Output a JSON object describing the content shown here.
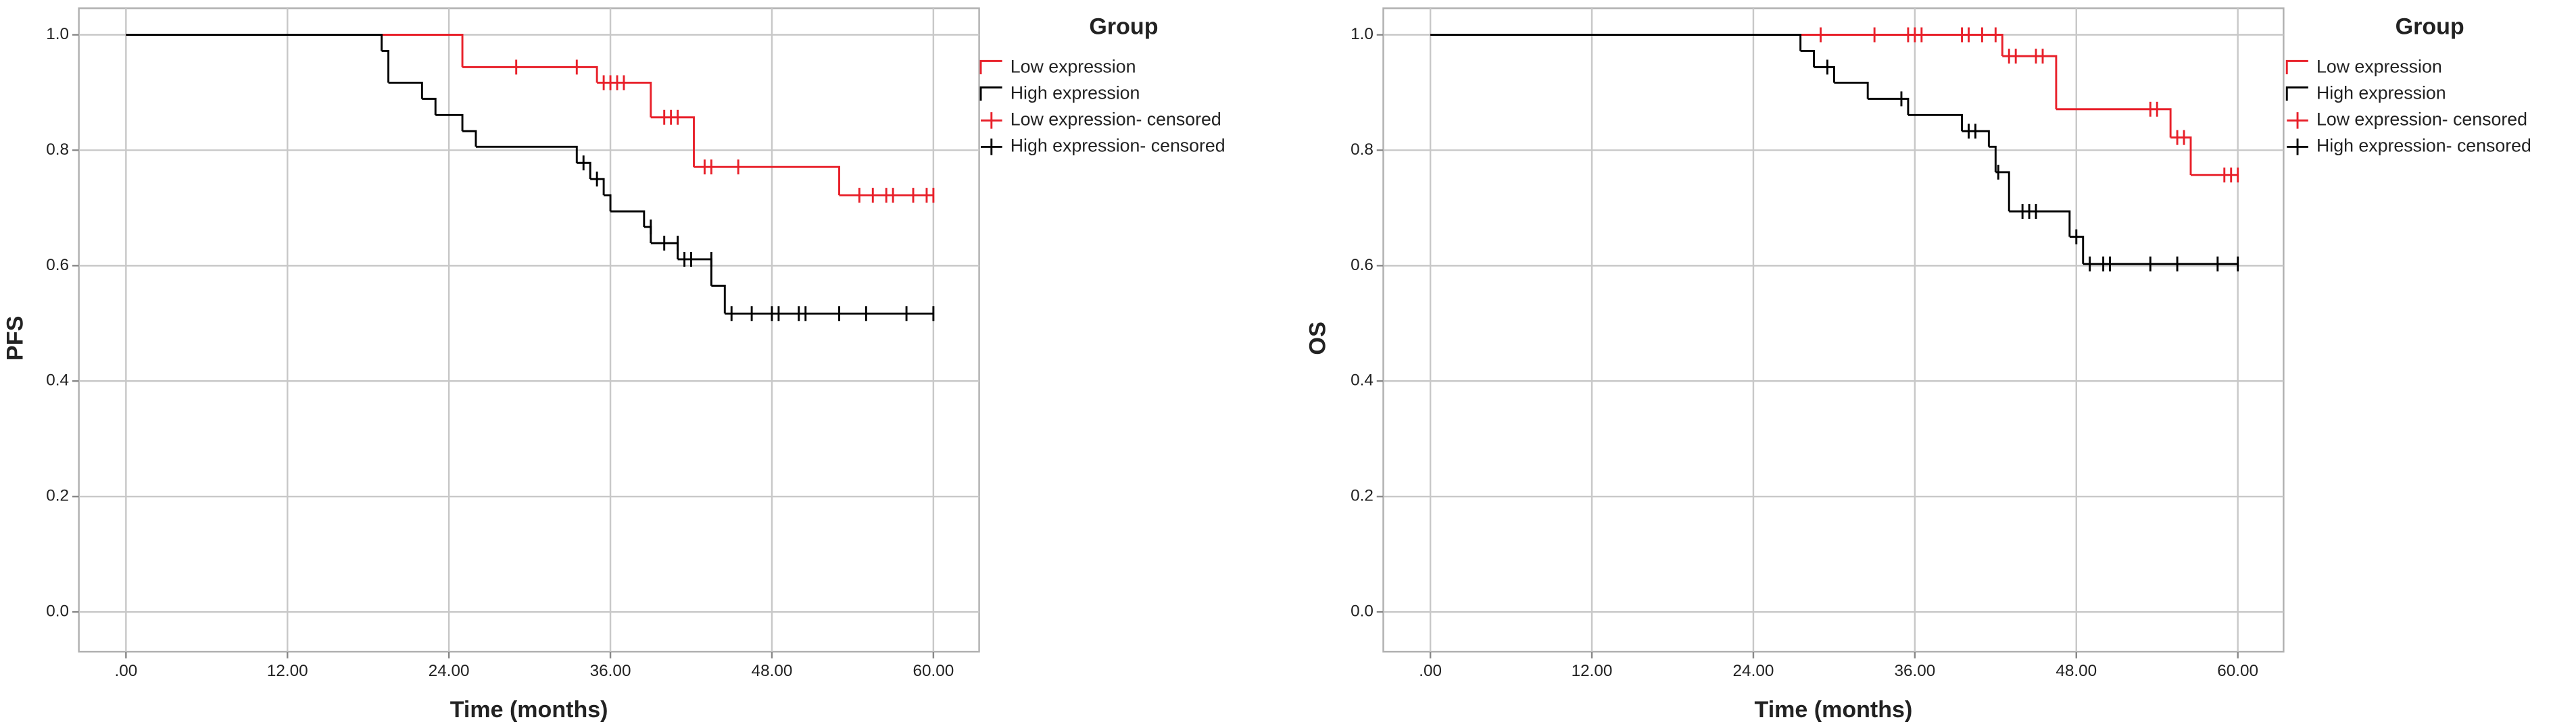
{
  "chart_data": [
    {
      "type": "step",
      "title_y": "PFS",
      "title_x": "Time (months)",
      "legend_title": "Group",
      "legend": "right",
      "grid": true,
      "xlim": [
        -3.5,
        63.4
      ],
      "ylim": [
        -0.069,
        1.046
      ],
      "xticks": [
        {
          "value": 0,
          "label": ".00"
        },
        {
          "value": 12,
          "label": "12.00"
        },
        {
          "value": 24,
          "label": "24.00"
        },
        {
          "value": 36,
          "label": "36.00"
        },
        {
          "value": 48,
          "label": "48.00"
        },
        {
          "value": 60,
          "label": "60.00"
        }
      ],
      "yticks": [
        {
          "value": 0,
          "label": "0.0"
        },
        0.2,
        0.4,
        0.6,
        0.8,
        {
          "value": 1,
          "label": "1.0"
        }
      ],
      "series": [
        {
          "name": "Low expression",
          "color": "#e8202a",
          "style": "step",
          "x": [
            0,
            25,
            35,
            39,
            42.2,
            53
          ],
          "values": [
            1,
            0.944,
            0.917,
            0.857,
            0.771,
            0.722
          ]
        },
        {
          "name": "High expression",
          "color": "#000000",
          "style": "step",
          "x": [
            0,
            19,
            19.5,
            22,
            23,
            25,
            26,
            33.5,
            34.5,
            35.5,
            36,
            38.5,
            39,
            41,
            43.5,
            44.5
          ],
          "values": [
            1,
            0.972,
            0.917,
            0.889,
            0.861,
            0.833,
            0.806,
            0.778,
            0.75,
            0.722,
            0.694,
            0.667,
            0.639,
            0.611,
            0.565,
            0.517
          ]
        },
        {
          "name": "Low expression- censored",
          "color": "#e8202a",
          "style": "censored",
          "x": [
            29,
            33.5,
            35.5,
            36,
            36.5,
            37,
            40,
            40.5,
            41,
            43,
            43.5,
            45.5,
            54.5,
            55.5,
            56.5,
            57,
            58.5,
            59.5,
            60
          ],
          "values": [
            0.944,
            0.944,
            0.917,
            0.917,
            0.917,
            0.917,
            0.857,
            0.857,
            0.857,
            0.771,
            0.771,
            0.771,
            0.722,
            0.722,
            0.722,
            0.722,
            0.722,
            0.722,
            0.722
          ]
        },
        {
          "name": "High expression- censored",
          "color": "#000000",
          "style": "censored",
          "x": [
            34,
            35,
            39,
            40,
            41,
            41.5,
            42,
            43.5,
            45,
            46.5,
            48,
            48.5,
            50,
            50.5,
            53,
            55,
            58,
            60
          ],
          "values": [
            0.778,
            0.75,
            0.667,
            0.639,
            0.639,
            0.611,
            0.611,
            0.611,
            0.517,
            0.517,
            0.517,
            0.517,
            0.517,
            0.517,
            0.517,
            0.517,
            0.517,
            0.517
          ]
        }
      ]
    },
    {
      "type": "step",
      "title_y": "OS",
      "title_x": "Time (months)",
      "legend_title": "Group",
      "legend": "right",
      "grid": true,
      "xlim": [
        -3.5,
        63.4
      ],
      "ylim": [
        -0.069,
        1.046
      ],
      "xticks": [
        {
          "value": 0,
          "label": ".00"
        },
        {
          "value": 12,
          "label": "12.00"
        },
        {
          "value": 24,
          "label": "24.00"
        },
        {
          "value": 36,
          "label": "36.00"
        },
        {
          "value": 48,
          "label": "48.00"
        },
        {
          "value": 60,
          "label": "60.00"
        }
      ],
      "yticks": [
        {
          "value": 0,
          "label": "0.0"
        },
        0.2,
        0.4,
        0.6,
        0.8,
        {
          "value": 1,
          "label": "1.0"
        }
      ],
      "series": [
        {
          "name": "Low expression",
          "color": "#e8202a",
          "style": "step",
          "x": [
            0,
            42.5,
            46.5,
            55,
            56.5
          ],
          "values": [
            1,
            0.963,
            0.871,
            0.822,
            0.757
          ]
        },
        {
          "name": "High expression",
          "color": "#000000",
          "style": "step",
          "x": [
            0,
            27.5,
            28.5,
            30,
            32.5,
            35.5,
            39.5,
            41.5,
            42,
            43,
            47.5,
            48.5
          ],
          "values": [
            1,
            0.972,
            0.944,
            0.917,
            0.889,
            0.861,
            0.833,
            0.806,
            0.762,
            0.694,
            0.65,
            0.603
          ]
        },
        {
          "name": "Low expression- censored",
          "color": "#e8202a",
          "style": "censored",
          "x": [
            29,
            33,
            35.5,
            36,
            36.5,
            39.5,
            40,
            41,
            42,
            43,
            43.5,
            45,
            45.5,
            53.5,
            54,
            55.5,
            56,
            59,
            59.5,
            60
          ],
          "values": [
            1,
            1,
            1,
            1,
            1,
            1,
            1,
            1,
            1,
            0.963,
            0.963,
            0.963,
            0.963,
            0.871,
            0.871,
            0.822,
            0.822,
            0.757,
            0.757,
            0.757
          ]
        },
        {
          "name": "High expression- censored",
          "color": "#000000",
          "style": "censored",
          "x": [
            29.5,
            35,
            40,
            40.5,
            42.2,
            44,
            44.5,
            45,
            48,
            49,
            50,
            50.5,
            53.5,
            55.5,
            58.5,
            60
          ],
          "values": [
            0.944,
            0.889,
            0.833,
            0.833,
            0.762,
            0.694,
            0.694,
            0.694,
            0.65,
            0.603,
            0.603,
            0.603,
            0.603,
            0.603,
            0.603,
            0.603
          ]
        }
      ]
    }
  ]
}
